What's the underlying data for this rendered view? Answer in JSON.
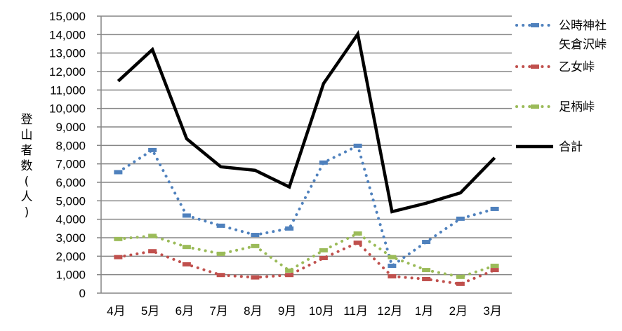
{
  "chart_data": {
    "type": "line",
    "title": "",
    "xlabel": "",
    "ylabel": "登山者数(人)",
    "ylim": [
      0,
      15000
    ],
    "ytick_step": 1000,
    "yticks": [
      "0",
      "1,000",
      "2,000",
      "3,000",
      "4,000",
      "5,000",
      "6,000",
      "7,000",
      "8,000",
      "9,000",
      "10,000",
      "11,000",
      "12,000",
      "13,000",
      "14,000",
      "15,000"
    ],
    "grid": true,
    "legend_position": "right",
    "categories": [
      "4月",
      "5月",
      "6月",
      "7月",
      "8月",
      "9月",
      "10月",
      "11月",
      "12月",
      "1月",
      "2月",
      "3月"
    ],
    "series": [
      {
        "name": "公時神社矢倉沢峠",
        "legend_lines": [
          "公時神社",
          "矢倉沢峠"
        ],
        "color": "#4f81bd",
        "style": "dotted",
        "values": [
          6550,
          7750,
          4200,
          3650,
          3150,
          3500,
          7070,
          7980,
          1480,
          2770,
          4030,
          4560
        ]
      },
      {
        "name": "乙女峠",
        "legend_lines": [
          "乙女峠"
        ],
        "color": "#c0504d",
        "style": "dotted",
        "values": [
          1950,
          2270,
          1560,
          980,
          850,
          980,
          1900,
          2730,
          910,
          760,
          500,
          1250
        ]
      },
      {
        "name": "足柄峠",
        "legend_lines": [
          "足柄峠"
        ],
        "color": "#9bbb59",
        "style": "dotted",
        "values": [
          2930,
          3100,
          2500,
          2130,
          2550,
          1220,
          2320,
          3230,
          1950,
          1250,
          880,
          1480
        ]
      },
      {
        "name": "合計",
        "legend_lines": [
          "合計"
        ],
        "color": "#000000",
        "style": "solid",
        "values": [
          11480,
          13190,
          8360,
          6840,
          6650,
          5750,
          11350,
          14030,
          4410,
          4870,
          5430,
          7330
        ]
      }
    ]
  }
}
